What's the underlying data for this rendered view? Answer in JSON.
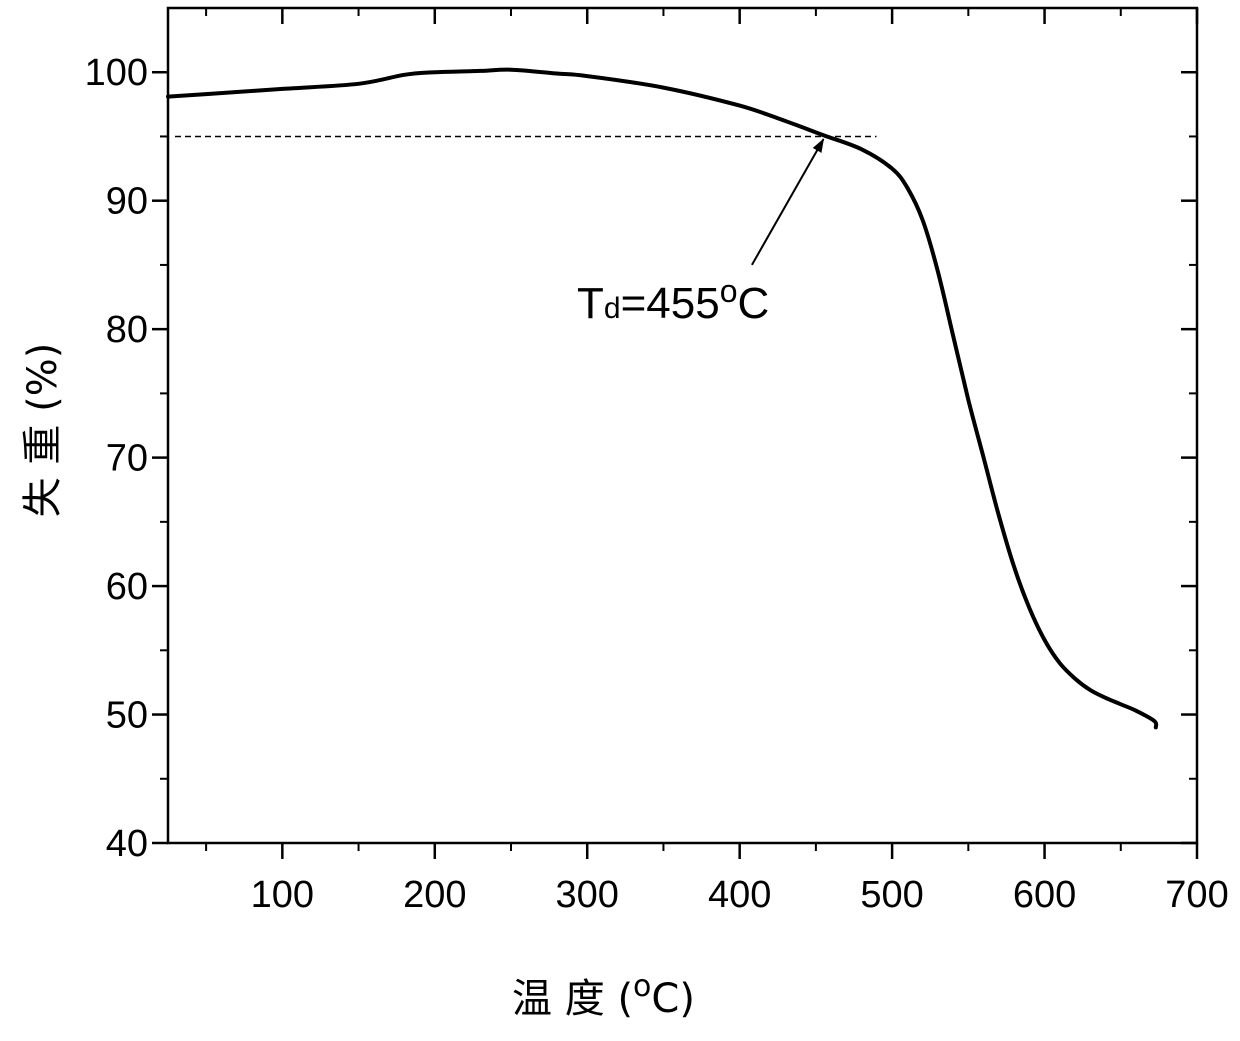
{
  "chart_data": {
    "type": "line",
    "xlabel": {
      "text": "温 度",
      "unit_open": "(",
      "unit_sup": "o",
      "unit_letter": "C",
      "unit_close": ")"
    },
    "ylabel": "失 重 (%)",
    "xlim": [
      25,
      700
    ],
    "ylim": [
      40,
      105
    ],
    "xticks": [
      100,
      200,
      300,
      400,
      500,
      600,
      700
    ],
    "xtick_labels": [
      "100",
      "200",
      "300",
      "400",
      "500",
      "600",
      "700"
    ],
    "yticks": [
      40,
      50,
      60,
      70,
      80,
      90,
      100
    ],
    "ytick_labels": [
      "40",
      "50",
      "60",
      "70",
      "80",
      "90",
      "100"
    ],
    "grid": false,
    "series": [
      {
        "x": [
          25,
          50,
          100,
          150,
          180,
          200,
          230,
          250,
          280,
          300,
          350,
          400,
          430,
          455,
          480,
          500,
          510,
          520,
          530,
          540,
          550,
          560,
          570,
          580,
          590,
          600,
          610,
          620,
          630,
          640,
          650,
          660,
          672,
          673
        ],
        "y": [
          98.1,
          98.3,
          98.7,
          99.1,
          99.8,
          100.0,
          100.1,
          100.2,
          99.9,
          99.7,
          98.8,
          97.4,
          96.2,
          95.1,
          94.0,
          92.5,
          91.0,
          88.5,
          84.5,
          79.5,
          74.5,
          70.0,
          65.5,
          61.5,
          58.3,
          55.8,
          54.0,
          52.8,
          51.9,
          51.3,
          50.8,
          50.3,
          49.5,
          49.0
        ],
        "color": "#000000"
      }
    ],
    "reference_line": {
      "y": 95,
      "x_start": 25,
      "x_end": 495,
      "style": "dashed"
    },
    "annotations": [
      {
        "text_main": "T",
        "text_sub": "d",
        "text_rest": "=455",
        "text_sup": "o",
        "text_end": "C",
        "label_x": 385,
        "label_y": 82.0,
        "arrow_from": [
          410,
          85.0
        ],
        "arrow_to": [
          455,
          95.1
        ]
      }
    ]
  }
}
